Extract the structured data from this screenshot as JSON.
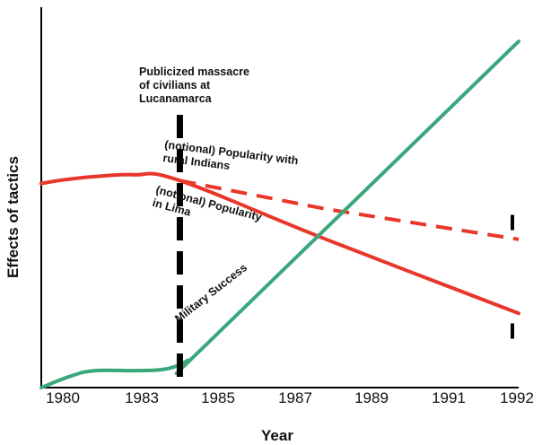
{
  "chart_data": {
    "type": "line",
    "title": "",
    "xlabel": "Year",
    "ylabel": "Effects of tactics",
    "xlim": [
      1979.6,
      1992.0
    ],
    "ylim": [
      0,
      100
    ],
    "x_ticks": [
      1980,
      1983,
      1985,
      1987,
      1989,
      1991,
      1992
    ],
    "y_ticks_shown": false,
    "grid": false,
    "legend": "none",
    "colors": {
      "red": "#e8372a",
      "green": "#3aa77a",
      "black": "#000000"
    },
    "series": [
      {
        "style": "solid",
        "color": "#e8372a",
        "points": [
          [
            1979.6,
            56.6
          ],
          [
            1980.2,
            57.6
          ],
          [
            1981,
            58.5
          ],
          [
            1982,
            59.0
          ],
          [
            1983.2,
            57.4
          ],
          [
            1987,
            41.1
          ],
          [
            1992,
            20.6
          ]
        ]
      },
      {
        "style": "dashed",
        "color": "#e8372a",
        "points": [
          [
            1983.2,
            57.4
          ],
          [
            1987,
            49.5
          ],
          [
            1992,
            41.1
          ]
        ]
      },
      {
        "style": "solid",
        "color": "#3aa77a",
        "points": [
          [
            1979.6,
            0
          ],
          [
            1980.4,
            3.3
          ],
          [
            1981,
            4.7
          ],
          [
            1982,
            4.7
          ],
          [
            1982.8,
            5.1
          ],
          [
            1983.4,
            7.5
          ],
          [
            1983.9,
            12.1
          ],
          [
            1992,
            96.0
          ]
        ]
      }
    ],
    "marker_line": {
      "x": 1983.2,
      "style": "dashed",
      "color": "#000000",
      "label": "Publicized massacre of civilians at Lucanamarca",
      "label_lines": [
        "Publicized massacre",
        "of civilians at",
        "Lucanamarca"
      ]
    },
    "annotations": [
      {
        "id": "popularity-rural-indians",
        "lines": [
          "(notional) Popularity with",
          "rural Indians"
        ]
      },
      {
        "id": "popularity-lima",
        "lines": [
          "(notional) Popularity",
          "in Lima"
        ]
      },
      {
        "id": "military-success",
        "lines": [
          "Military Success"
        ]
      }
    ],
    "end_markers": [
      {
        "x": 1992,
        "y": 45.9
      },
      {
        "x": 1992,
        "y": 15.8
      }
    ]
  }
}
